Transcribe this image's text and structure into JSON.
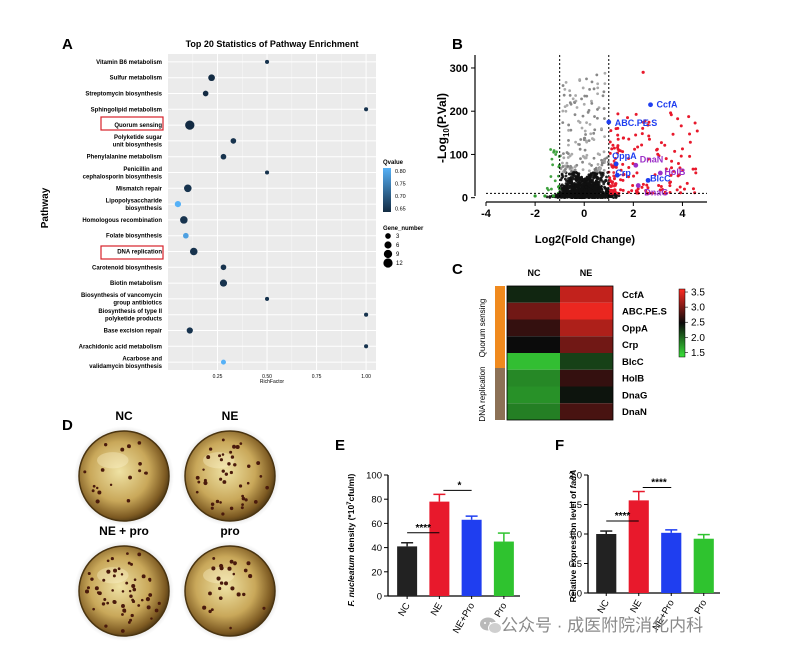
{
  "panels": {
    "A": {
      "letter": "A",
      "title": "Top 20 Statistics of Pathway Enrichment",
      "ylabel": "Pathway",
      "xlabel": "RichFactor",
      "xticks": [
        "0.25",
        "0.50",
        "0.75",
        "1.00"
      ],
      "legend_q_title": "Qvalue",
      "legend_q_ticks": [
        "0.80",
        "0.75",
        "0.70",
        "0.65"
      ],
      "legend_g_title": "Gene_number",
      "legend_g_items": [
        "3",
        "6",
        "9",
        "12"
      ]
    },
    "B": {
      "letter": "B",
      "ylabel_main": "-Log",
      "ylabel_sub": "10",
      "ylabel_end": "(P.Val)",
      "xlabel": "Log2(Fold Change)",
      "xticks": [
        "-4",
        "-2",
        "0",
        "2",
        "4"
      ],
      "yticks": [
        "0",
        "100",
        "200",
        "300"
      ],
      "labels_blue": [
        "CcfA",
        "ABC.PE.S",
        "OppA",
        "Crp",
        "BlcC"
      ],
      "labels_purple": [
        "DnaN",
        "HolB",
        "DnaG"
      ]
    },
    "C": {
      "letter": "C",
      "col_nc": "NC",
      "col_ne": "NE",
      "group_top": "Quorum sensing",
      "group_bottom": "DNA replication",
      "rows": [
        "CcfA",
        "ABC.PE.S",
        "OppA",
        "Crp",
        "BlcC",
        "HolB",
        "DnaG",
        "DnaN"
      ],
      "scale_ticks": [
        "3.5",
        "3.0",
        "2.5",
        "2.0",
        "1.5"
      ]
    },
    "D": {
      "letter": "D",
      "plates": [
        "NC",
        "NE",
        "NE + pro",
        "pro"
      ]
    },
    "E": {
      "letter": "E",
      "ylabel_italic": "F. nucleatum",
      "ylabel_rest": " density (*10",
      "ylabel_sup": "7",
      "ylabel_end": "cfu/ml)",
      "yticks": [
        "0",
        "20",
        "40",
        "60",
        "80",
        "100"
      ],
      "sig1": "****",
      "sig2": "*"
    },
    "F": {
      "letter": "F",
      "ylabel_rest": "Relative expression level of ",
      "ylabel_italic": "fadA",
      "yticks": [
        "0.0",
        "0.5",
        "1.0",
        "1.5",
        "2.0"
      ],
      "sig1": "****",
      "sig2": "****"
    }
  },
  "watermark": "公众号 · 成医附院消化内科",
  "chart_data": [
    {
      "type": "scatter",
      "title": "Top 20 Statistics of Pathway Enrichment",
      "xlabel": "RichFactor",
      "ylabel": "Pathway",
      "xlim": [
        0,
        1.05
      ],
      "categories": [
        "Vitamin B6 metabolism",
        "Sulfur metabolism",
        "Streptomycin biosynthesis",
        "Sphingolipid metabolism",
        "Quorum sensing",
        "Polyketide sugar unit biosynthesis",
        "Phenylalanine metabolism",
        "Penicillin and cephalosporin biosynthesis",
        "Mismatch repair",
        "Lipopolysaccharide biosynthesis",
        "Homologous recombination",
        "Folate biosynthesis",
        "DNA replication",
        "Carotenoid biosynthesis",
        "Biotin metabolism",
        "Biosynthesis of vancomycin group antibiotics",
        "Biosynthesis of type II polyketide products",
        "Base excision repair",
        "Arachidonic acid metabolism",
        "Acarbose and validamycin biosynthesis"
      ],
      "display_lines": [
        [
          "Vitamin B6 metabolism"
        ],
        [
          "Sulfur metabolism"
        ],
        [
          "Streptomycin biosynthesis"
        ],
        [
          "Sphingolipid metabolism"
        ],
        [
          "Quorum sensing"
        ],
        [
          "Polyketide sugar",
          "unit biosynthesis"
        ],
        [
          "Phenylalanine metabolism"
        ],
        [
          "Penicillin and",
          "cephalosporin biosynthesis"
        ],
        [
          "Mismatch repair"
        ],
        [
          "Lipopolysaccharide",
          "biosynthesis"
        ],
        [
          "Homologous recombination"
        ],
        [
          "Folate biosynthesis"
        ],
        [
          "DNA replication"
        ],
        [
          "Carotenoid biosynthesis"
        ],
        [
          "Biotin metabolism"
        ],
        [
          "Biosynthesis of vancomycin",
          "group antibiotics"
        ],
        [
          "Biosynthesis of type II",
          "polyketide products"
        ],
        [
          "Base excision repair"
        ],
        [
          "Arachidonic acid metabolism"
        ],
        [
          "Acarbose and",
          "validamycin biosynthesis"
        ]
      ],
      "highlighted": [
        "Quorum sensing",
        "DNA replication"
      ],
      "rich_factor": [
        0.5,
        0.22,
        0.19,
        1.0,
        0.11,
        0.33,
        0.28,
        0.5,
        0.1,
        0.05,
        0.08,
        0.09,
        0.13,
        0.28,
        0.28,
        0.5,
        1.0,
        0.11,
        1.0,
        0.28
      ],
      "gene_number": [
        1,
        5,
        3,
        1,
        12,
        3,
        3,
        1,
        7,
        4,
        7,
        3,
        7,
        3,
        6,
        1,
        1,
        4,
        1,
        2
      ],
      "qvalue": [
        0.66,
        0.65,
        0.65,
        0.66,
        0.65,
        0.66,
        0.66,
        0.66,
        0.66,
        0.81,
        0.66,
        0.79,
        0.66,
        0.66,
        0.66,
        0.66,
        0.66,
        0.66,
        0.66,
        0.81
      ]
    },
    {
      "type": "scatter",
      "title": "",
      "xlabel": "Log2(Fold Change)",
      "ylabel": "-Log10(P.Val)",
      "xlim": [
        -4,
        5
      ],
      "ylim": [
        -10,
        330
      ],
      "thresholds_x": [
        -1,
        1
      ],
      "threshold_y": 10,
      "labeled_points": [
        {
          "name": "CcfA",
          "x": 2.7,
          "y": 215,
          "group": "quorum"
        },
        {
          "name": "ABC.PE.S",
          "x": 1.0,
          "y": 175,
          "group": "quorum"
        },
        {
          "name": "OppA",
          "x": 1.3,
          "y": 78,
          "group": "quorum"
        },
        {
          "name": "Crp",
          "x": 1.35,
          "y": 52,
          "group": "quorum"
        },
        {
          "name": "BlcC",
          "x": 2.6,
          "y": 40,
          "group": "quorum"
        },
        {
          "name": "DnaN",
          "x": 2.1,
          "y": 75,
          "group": "replication"
        },
        {
          "name": "HolB",
          "x": 3.1,
          "y": 57,
          "group": "replication"
        },
        {
          "name": "DnaG",
          "x": 2.2,
          "y": 28,
          "group": "replication"
        }
      ]
    },
    {
      "type": "heatmap",
      "title": "",
      "xlabel": "",
      "ylabel": "",
      "categories": [
        "NC",
        "NE"
      ],
      "rows": [
        "CcfA",
        "ABC.PE.S",
        "OppA",
        "Crp",
        "BlcC",
        "HolB",
        "DnaG",
        "DnaN"
      ],
      "values": [
        [
          2.25,
          3.3
        ],
        [
          2.9,
          3.5
        ],
        [
          2.6,
          3.2
        ],
        [
          2.4,
          2.9
        ],
        [
          1.4,
          2.1
        ],
        [
          1.7,
          2.6
        ],
        [
          1.65,
          2.35
        ],
        [
          1.75,
          2.7
        ]
      ],
      "scale": [
        1.2,
        3.6
      ]
    },
    {
      "type": "bar",
      "title": "",
      "xlabel": "",
      "ylabel": "F. nucleatum density (*10^7cfu/ml)",
      "categories": [
        "NC",
        "NE",
        "NE+Pro",
        "Pro"
      ],
      "values": [
        41,
        78,
        63,
        45
      ],
      "errors": [
        3,
        6,
        3,
        7
      ],
      "colors": [
        "#222222",
        "#e8192c",
        "#1f3ef0",
        "#2fc32f"
      ],
      "ylim": [
        0,
        100
      ]
    },
    {
      "type": "bar",
      "title": "",
      "xlabel": "",
      "ylabel": "Relative expression level of fadA",
      "categories": [
        "NC",
        "NE",
        "NE+Pro",
        "Pro"
      ],
      "values": [
        1.0,
        1.57,
        1.02,
        0.92
      ],
      "errors": [
        0.05,
        0.15,
        0.05,
        0.07
      ],
      "colors": [
        "#222222",
        "#e8192c",
        "#1f3ef0",
        "#2fc32f"
      ],
      "ylim": [
        0,
        2.0
      ]
    }
  ]
}
